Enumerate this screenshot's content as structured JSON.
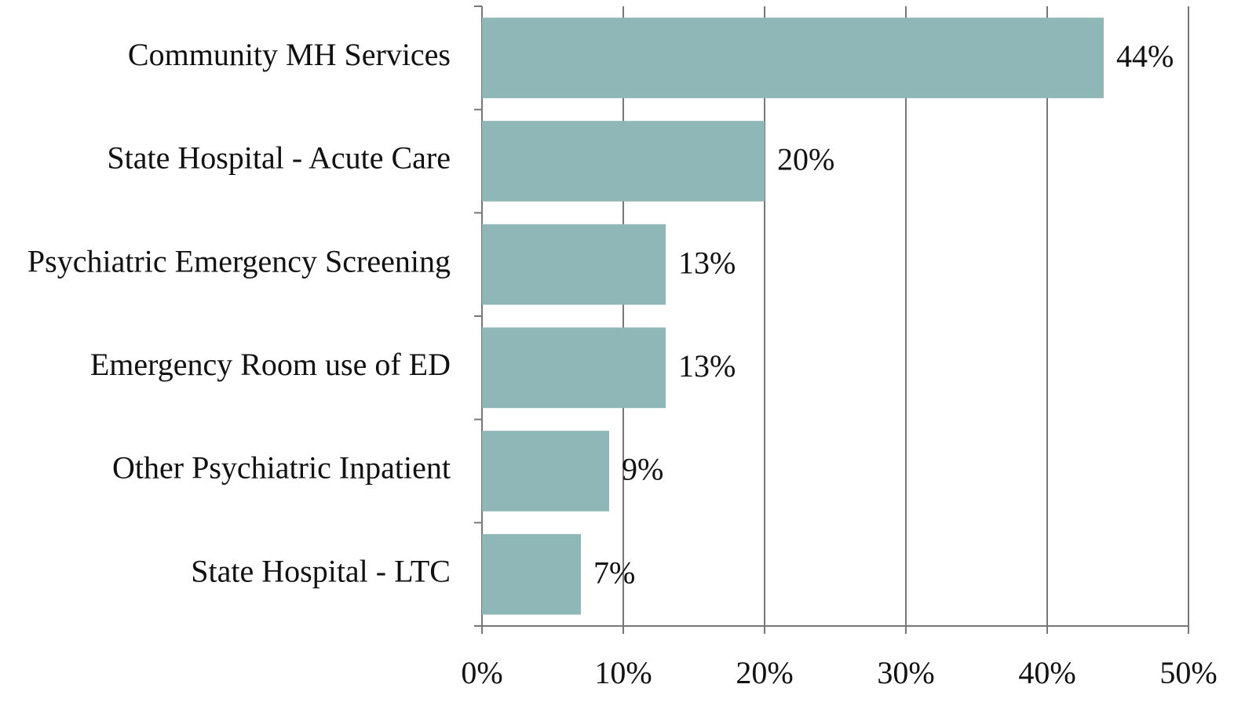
{
  "chart_data": {
    "type": "hbar",
    "categories": [
      "Community MH Services",
      "State Hospital - Acute Care",
      "Psychiatric Emergency Screening",
      "Emergency Room use of ED",
      "Other Psychiatric Inpatient",
      "State Hospital - LTC"
    ],
    "values": [
      44,
      20,
      13,
      13,
      9,
      7
    ],
    "value_labels": [
      "44%",
      "20%",
      "13%",
      "13%",
      "9%",
      "7%"
    ],
    "color": "#8fb7b8",
    "xlim": [
      0,
      50
    ],
    "xticks": [
      {
        "value": 0,
        "label": "0%"
      },
      {
        "value": 10,
        "label": "10%"
      },
      {
        "value": 20,
        "label": "20%"
      },
      {
        "value": 30,
        "label": "30%"
      },
      {
        "value": 40,
        "label": "40%"
      },
      {
        "value": 50,
        "label": "50%"
      }
    ],
    "grid": true
  }
}
